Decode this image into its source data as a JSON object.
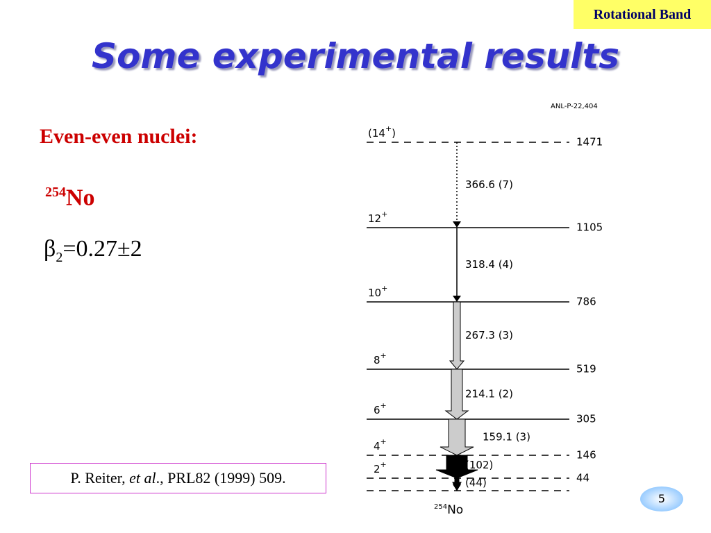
{
  "tag": "Rotational Band",
  "title": "Some experimental results",
  "subtitle": "Even-even nuclei:",
  "nucleus": {
    "mass": "254",
    "symbol": "No"
  },
  "deformation": {
    "symbol": "β",
    "index": "2",
    "value": "=0.27±2"
  },
  "reference": {
    "authors": "P. Reiter, ",
    "etal": "et al",
    "rest": "., PRL82 (1999) 509."
  },
  "page_number": "5",
  "diagram": {
    "source": "ANL-P-22,404",
    "levels": [
      {
        "spin": "(14",
        "parity": "+",
        "close": ")",
        "energy": 1471
      },
      {
        "spin": "12",
        "parity": "+",
        "energy": 1105
      },
      {
        "spin": "10",
        "parity": "+",
        "energy": 786
      },
      {
        "spin": "8",
        "parity": "+",
        "energy": 519
      },
      {
        "spin": "6",
        "parity": "+",
        "energy": 305
      },
      {
        "spin": "4",
        "parity": "+",
        "energy": 146
      },
      {
        "spin": "2",
        "parity": "+",
        "energy": 44
      }
    ],
    "transitions": [
      "366.6 (7)",
      "318.4 (4)",
      "267.3 (3)",
      "214.1 (2)",
      "159.1 (3)",
      "(102)",
      "(44)"
    ],
    "ground": {
      "mass": "254",
      "symbol": "No"
    }
  }
}
